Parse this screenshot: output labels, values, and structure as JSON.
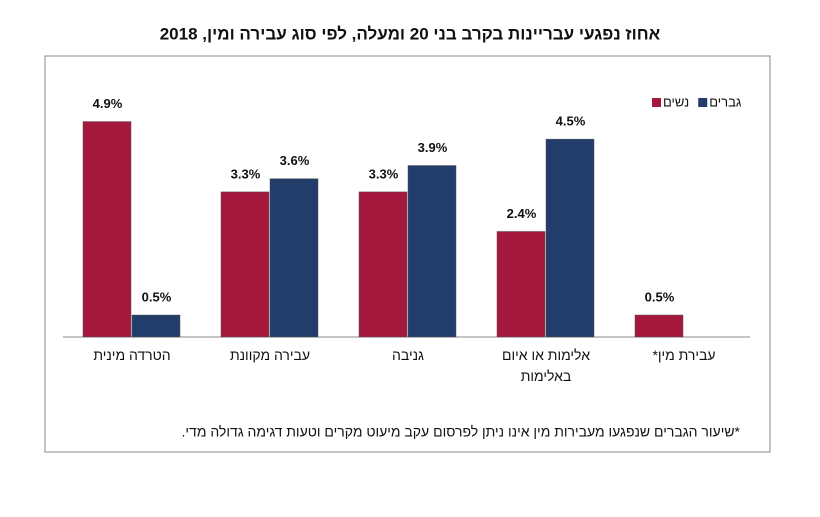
{
  "chart_data": {
    "type": "bar",
    "title": "אחוז נפגעי עבריינות בקרב בני 20 ומעלה, לפי סוג עבירה ומין, 2018",
    "categories": [
      "הטרדה מינית",
      "עבירה מקוונת",
      "גניבה",
      "אלימות או איום באלימות",
      "עבירת מין*"
    ],
    "series": [
      {
        "name": "נשים",
        "color": "#a3183c",
        "values": [
          4.9,
          3.3,
          3.3,
          2.4,
          0.5
        ],
        "value_labels": [
          "4.9%",
          "3.3%",
          "3.3%",
          "2.4%",
          "0.5%"
        ]
      },
      {
        "name": "גברים",
        "color": "#233d6b",
        "values": [
          0.5,
          3.6,
          3.9,
          4.5,
          null
        ],
        "value_labels": [
          "0.5%",
          "3.6%",
          "3.9%",
          "4.5%",
          null
        ]
      }
    ],
    "ylim": [
      0,
      6.3
    ],
    "legend": "top-right",
    "footnote": "*שיעור הגברים שנפגעו מעבירות מין אינו ניתן לפרסום עקב מיעוט מקרים וטעות דגימה גדולה מדי."
  }
}
